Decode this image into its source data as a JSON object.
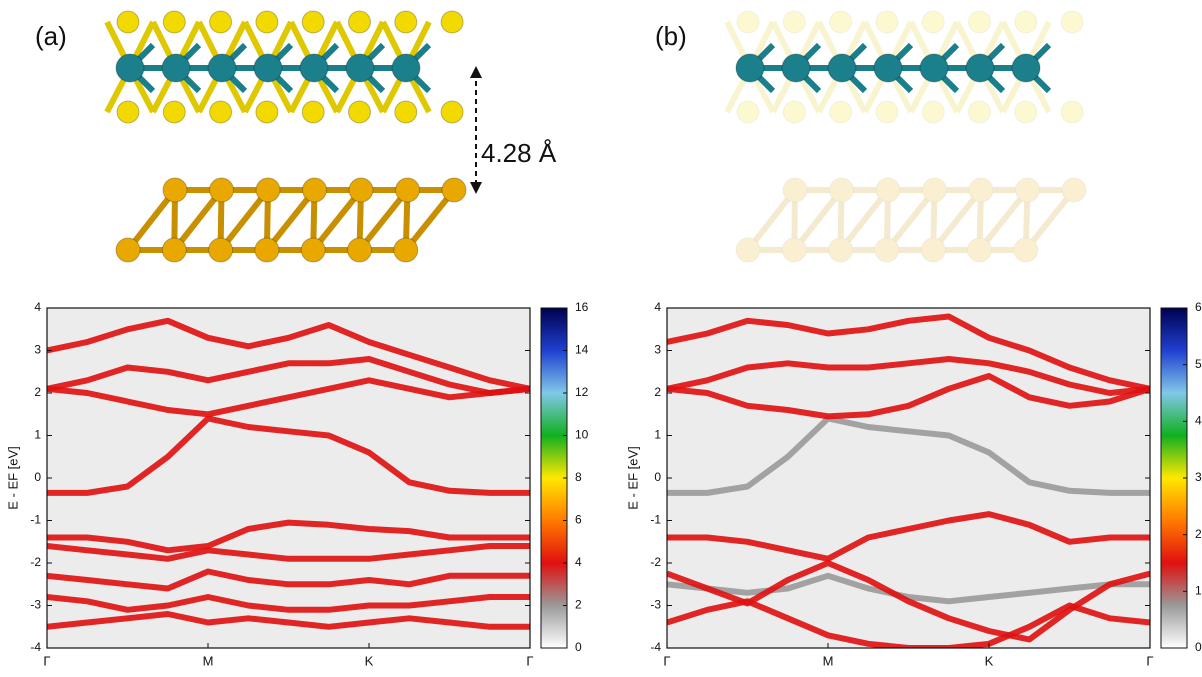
{
  "chart_data": [
    {
      "type": "line",
      "label": "(a)",
      "annotation": "4.28 Å",
      "ylabel": "E - EF [eV]",
      "x": [
        0,
        0.25,
        0.5,
        0.75,
        1,
        1.25,
        1.5,
        1.75,
        2,
        2.25,
        2.5,
        2.75,
        3
      ],
      "xlim": [
        0,
        3
      ],
      "xticks": [
        {
          "value": 0,
          "label": "Γ"
        },
        {
          "value": 1,
          "label": "M"
        },
        {
          "value": 2,
          "label": "K"
        },
        {
          "value": 3,
          "label": "Γ"
        }
      ],
      "ylim": [
        -4,
        4
      ],
      "yticks": [
        -4,
        -3,
        -2,
        -1,
        0,
        1,
        2,
        3,
        4
      ],
      "colorbar_lim": [
        0,
        16
      ],
      "colorbar_ticks": [
        0,
        2,
        4,
        6,
        8,
        10,
        12,
        14,
        16
      ],
      "colorbar_colors": [
        "#ffffff",
        "#9a9a9a",
        "#e01010",
        "#ff7a00",
        "#ffe800",
        "#10b020",
        "#80c8e8",
        "#2040d0",
        "#000050"
      ],
      "series": [
        {
          "color": "#e01010",
          "values": [
            -0.35,
            -0.35,
            -0.2,
            0.5,
            1.4,
            1.2,
            1.1,
            1.0,
            0.6,
            -0.1,
            -0.3,
            -0.35,
            -0.35
          ]
        },
        {
          "color": "#e01010",
          "values": [
            2.1,
            2.0,
            1.8,
            1.6,
            1.5,
            1.7,
            1.9,
            2.1,
            2.3,
            2.1,
            1.9,
            2.0,
            2.1
          ]
        },
        {
          "color": "#e01010",
          "values": [
            2.1,
            2.3,
            2.6,
            2.5,
            2.3,
            2.5,
            2.7,
            2.7,
            2.8,
            2.5,
            2.2,
            2.0,
            2.1
          ]
        },
        {
          "color": "#e01010",
          "values": [
            3.0,
            3.2,
            3.5,
            3.7,
            3.3,
            3.1,
            3.3,
            3.6,
            3.2,
            2.9,
            2.6,
            2.3,
            2.1
          ]
        },
        {
          "color": "#e01010",
          "values": [
            -1.4,
            -1.4,
            -1.5,
            -1.7,
            -1.6,
            -1.2,
            -1.05,
            -1.1,
            -1.2,
            -1.25,
            -1.4,
            -1.4,
            -1.4
          ]
        },
        {
          "color": "#e01010",
          "values": [
            -1.6,
            -1.7,
            -1.8,
            -1.9,
            -1.7,
            -1.8,
            -1.9,
            -1.9,
            -1.9,
            -1.8,
            -1.7,
            -1.6,
            -1.6
          ]
        },
        {
          "color": "#e01010",
          "values": [
            -2.3,
            -2.4,
            -2.5,
            -2.6,
            -2.2,
            -2.4,
            -2.5,
            -2.5,
            -2.4,
            -2.5,
            -2.3,
            -2.3,
            -2.3
          ]
        },
        {
          "color": "#e01010",
          "values": [
            -2.8,
            -2.9,
            -3.1,
            -3.0,
            -2.8,
            -3.0,
            -3.1,
            -3.1,
            -3.0,
            -3.0,
            -2.9,
            -2.8,
            -2.8
          ]
        },
        {
          "color": "#e01010",
          "values": [
            -3.5,
            -3.4,
            -3.3,
            -3.2,
            -3.4,
            -3.3,
            -3.4,
            -3.5,
            -3.4,
            -3.3,
            -3.4,
            -3.5,
            -3.5
          ]
        }
      ]
    },
    {
      "type": "line",
      "label": "(b)",
      "ylabel": "E - EF [eV]",
      "x": [
        0,
        0.25,
        0.5,
        0.75,
        1,
        1.25,
        1.5,
        1.75,
        2,
        2.25,
        2.5,
        2.75,
        3
      ],
      "xlim": [
        0,
        3
      ],
      "xticks": [
        {
          "value": 0,
          "label": "Γ"
        },
        {
          "value": 1,
          "label": "M"
        },
        {
          "value": 2,
          "label": "K"
        },
        {
          "value": 3,
          "label": "Γ"
        }
      ],
      "ylim": [
        -4,
        4
      ],
      "yticks": [
        -4,
        -3,
        -2,
        -1,
        0,
        1,
        2,
        3,
        4
      ],
      "colorbar_lim": [
        0,
        6
      ],
      "colorbar_ticks": [
        0,
        1,
        2,
        3,
        4,
        5,
        6
      ],
      "colorbar_colors": [
        "#ffffff",
        "#9a9a9a",
        "#e01010",
        "#ff7a00",
        "#ffe800",
        "#10b020",
        "#80c8e8",
        "#2040d0",
        "#000050"
      ],
      "series": [
        {
          "color": "#9a9a9a",
          "values": [
            -0.35,
            -0.35,
            -0.2,
            0.5,
            1.4,
            1.2,
            1.1,
            1.0,
            0.6,
            -0.1,
            -0.3,
            -0.35,
            -0.35
          ]
        },
        {
          "color": "#9a9a9a",
          "values": [
            -2.5,
            -2.6,
            -2.7,
            -2.6,
            -2.3,
            -2.6,
            -2.8,
            -2.9,
            -2.8,
            -2.7,
            -2.6,
            -2.5,
            -2.5
          ]
        },
        {
          "color": "#e01010",
          "values": [
            2.1,
            2.0,
            1.7,
            1.6,
            1.45,
            1.5,
            1.7,
            2.1,
            2.4,
            1.9,
            1.7,
            1.8,
            2.1
          ]
        },
        {
          "color": "#e01010",
          "values": [
            2.1,
            2.3,
            2.6,
            2.7,
            2.6,
            2.6,
            2.7,
            2.8,
            2.7,
            2.5,
            2.2,
            2.0,
            2.1
          ]
        },
        {
          "color": "#e01010",
          "values": [
            3.2,
            3.4,
            3.7,
            3.6,
            3.4,
            3.5,
            3.7,
            3.8,
            3.3,
            3.0,
            2.6,
            2.3,
            2.1
          ]
        },
        {
          "color": "#e01010",
          "values": [
            -1.4,
            -1.4,
            -1.5,
            -1.7,
            -1.9,
            -1.4,
            -1.2,
            -1.0,
            -0.85,
            -1.1,
            -1.5,
            -1.4,
            -1.4
          ]
        },
        {
          "color": "#e01010",
          "values": [
            -2.25,
            -2.6,
            -2.95,
            -2.4,
            -2.0,
            -2.4,
            -2.9,
            -3.3,
            -3.6,
            -3.8,
            -3.1,
            -2.5,
            -2.25
          ]
        },
        {
          "color": "#e01010",
          "values": [
            -3.4,
            -3.1,
            -2.9,
            -3.3,
            -3.7,
            -3.9,
            -4.0,
            -4.0,
            -3.9,
            -3.5,
            -3.0,
            -3.3,
            -3.4
          ]
        }
      ]
    }
  ]
}
